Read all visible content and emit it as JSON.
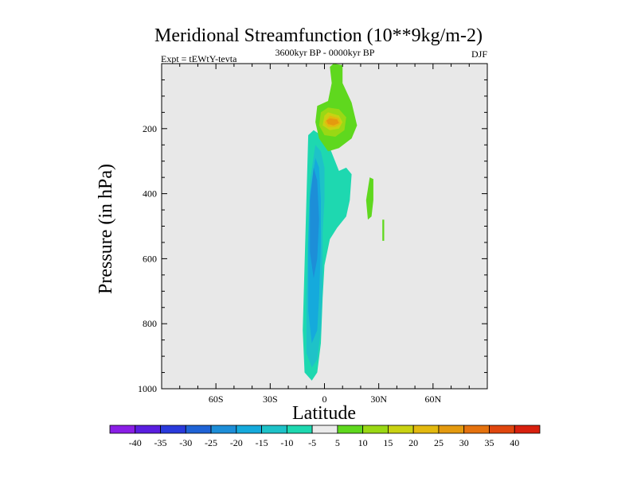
{
  "chart_data": {
    "type": "filled-contour",
    "title": "Meridional Streamfunction (10**9kg/m-2)",
    "experiment_label": "Expt = tEWtY-tevta",
    "period_label": "3600kyr BP - 0000kyr BP",
    "season_label": "DJF",
    "xlabel": "Latitude",
    "ylabel": "Pressure (in hPa)",
    "xlim": [
      -90,
      90
    ],
    "ylim": [
      1000,
      0
    ],
    "x_ticks": [
      {
        "value": -60,
        "label": "60S"
      },
      {
        "value": -30,
        "label": "30S"
      },
      {
        "value": 0,
        "label": "0"
      },
      {
        "value": 30,
        "label": "30N"
      },
      {
        "value": 60,
        "label": "60N"
      }
    ],
    "y_ticks": [
      {
        "value": 200,
        "label": "200"
      },
      {
        "value": 400,
        "label": "400"
      },
      {
        "value": 600,
        "label": "600"
      },
      {
        "value": 800,
        "label": "800"
      },
      {
        "value": 1000,
        "label": "1000"
      }
    ],
    "colorbar": {
      "labels": [
        "-40",
        "-35",
        "-30",
        "-25",
        "-20",
        "-15",
        "-10",
        "-5",
        "5",
        "10",
        "15",
        "20",
        "25",
        "30",
        "35",
        "40"
      ],
      "colors": [
        "#8a1ee6",
        "#5a1ee0",
        "#2a3adc",
        "#1f63d6",
        "#1d8ed8",
        "#15aadc",
        "#1ec2c8",
        "#1ed8b0",
        "#ebebeb",
        "#5fd81e",
        "#9ad814",
        "#c9d212",
        "#e3b90f",
        "#e49a0f",
        "#e5720e",
        "#e0460e",
        "#d8200e"
      ]
    },
    "regions": [
      {
        "level": -5,
        "points": [
          [
            -9,
            220
          ],
          [
            -6,
            205
          ],
          [
            -2,
            220
          ],
          [
            3,
            260
          ],
          [
            8,
            330
          ],
          [
            12,
            320
          ],
          [
            15,
            340
          ],
          [
            14,
            420
          ],
          [
            12,
            470
          ],
          [
            7,
            505
          ],
          [
            3,
            540
          ],
          [
            0,
            620
          ],
          [
            -1,
            720
          ],
          [
            -2,
            860
          ],
          [
            -4,
            950
          ],
          [
            -7,
            975
          ],
          [
            -11,
            950
          ],
          [
            -12,
            820
          ],
          [
            -11,
            620
          ],
          [
            -10,
            420
          ]
        ]
      },
      {
        "level": -10,
        "points": [
          [
            -5,
            250
          ],
          [
            -2,
            270
          ],
          [
            0,
            320
          ],
          [
            0,
            420
          ],
          [
            -1,
            520
          ],
          [
            -1,
            680
          ],
          [
            -2,
            820
          ],
          [
            -4,
            910
          ],
          [
            -7,
            935
          ],
          [
            -10,
            890
          ],
          [
            -10,
            720
          ],
          [
            -9,
            520
          ],
          [
            -8,
            360
          ]
        ]
      },
      {
        "level": -15,
        "points": [
          [
            -5,
            290
          ],
          [
            -3,
            320
          ],
          [
            -2,
            420
          ],
          [
            -2,
            560
          ],
          [
            -3,
            720
          ],
          [
            -4,
            820
          ],
          [
            -7,
            860
          ],
          [
            -9,
            760
          ],
          [
            -9,
            560
          ],
          [
            -8,
            400
          ]
        ]
      },
      {
        "level": -20,
        "points": [
          [
            -6,
            320
          ],
          [
            -4,
            360
          ],
          [
            -3,
            480
          ],
          [
            -4,
            600
          ],
          [
            -6,
            660
          ],
          [
            -8,
            580
          ],
          [
            -8,
            420
          ]
        ]
      },
      {
        "level": 5,
        "points": [
          [
            5,
            0
          ],
          [
            10,
            5
          ],
          [
            10,
            60
          ],
          [
            15,
            120
          ],
          [
            18,
            190
          ],
          [
            15,
            230
          ],
          [
            8,
            260
          ],
          [
            2,
            270
          ],
          [
            -3,
            230
          ],
          [
            -5,
            180
          ],
          [
            -4,
            130
          ],
          [
            2,
            115
          ],
          [
            4,
            60
          ],
          [
            3,
            10
          ]
        ]
      },
      {
        "level": 5,
        "points": [
          [
            25,
            350
          ],
          [
            27,
            355
          ],
          [
            27,
            420
          ],
          [
            26,
            470
          ],
          [
            24,
            480
          ],
          [
            23,
            420
          ]
        ]
      },
      {
        "level": 5,
        "points": [
          [
            32,
            480
          ],
          [
            33,
            480
          ],
          [
            33,
            545
          ],
          [
            32,
            545
          ]
        ]
      },
      {
        "level": 10,
        "points": [
          [
            2,
            135
          ],
          [
            8,
            140
          ],
          [
            12,
            165
          ],
          [
            11,
            205
          ],
          [
            6,
            225
          ],
          [
            0,
            220
          ],
          [
            -3,
            190
          ],
          [
            -2,
            150
          ]
        ]
      },
      {
        "level": 15,
        "points": [
          [
            2,
            150
          ],
          [
            8,
            160
          ],
          [
            10,
            180
          ],
          [
            8,
            200
          ],
          [
            3,
            205
          ],
          [
            -1,
            190
          ],
          [
            0,
            160
          ]
        ]
      },
      {
        "level": 20,
        "points": [
          [
            3,
            160
          ],
          [
            8,
            168
          ],
          [
            9,
            185
          ],
          [
            6,
            195
          ],
          [
            2,
            195
          ],
          [
            0,
            180
          ]
        ]
      },
      {
        "level": 25,
        "points": [
          [
            3,
            168
          ],
          [
            7,
            172
          ],
          [
            8,
            183
          ],
          [
            5,
            190
          ],
          [
            2,
            186
          ],
          [
            1,
            175
          ]
        ]
      }
    ]
  }
}
